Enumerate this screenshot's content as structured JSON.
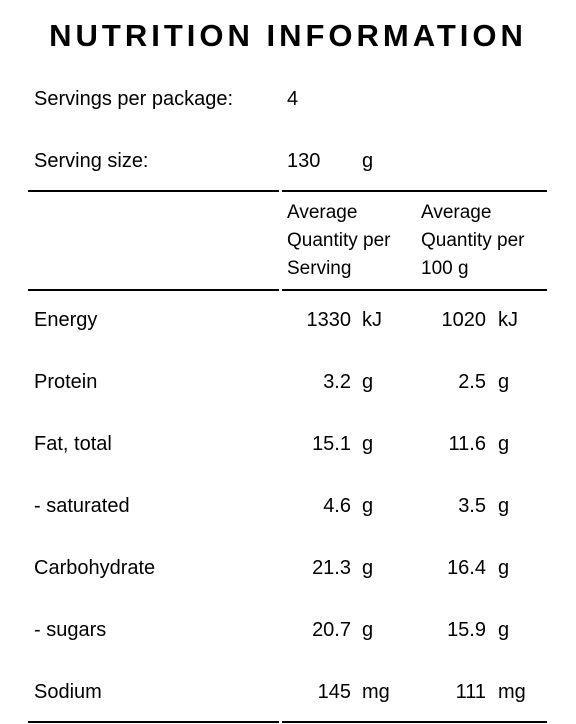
{
  "title": "NUTRITION INFORMATION",
  "servings_per_package": {
    "label": "Servings per package:",
    "value": 4
  },
  "serving_size": {
    "label": "Serving size:",
    "value": 130,
    "unit": "g"
  },
  "table": {
    "columns": [
      "Average Quantity per Serving",
      "Average Quantity per 100 g"
    ],
    "rows": [
      {
        "name": "Energy",
        "per_serving": 1330,
        "per_serving_unit": "kJ",
        "per_100g": 1020,
        "per_100g_unit": "kJ"
      },
      {
        "name": "Protein",
        "per_serving": 3.2,
        "per_serving_unit": "g",
        "per_100g": 2.5,
        "per_100g_unit": "g"
      },
      {
        "name": "Fat, total",
        "per_serving": 15.1,
        "per_serving_unit": "g",
        "per_100g": 11.6,
        "per_100g_unit": "g"
      },
      {
        "name": "- saturated",
        "per_serving": 4.6,
        "per_serving_unit": "g",
        "per_100g": 3.5,
        "per_100g_unit": "g"
      },
      {
        "name": "Carbohydrate",
        "per_serving": 21.3,
        "per_serving_unit": "g",
        "per_100g": 16.4,
        "per_100g_unit": "g"
      },
      {
        "name": "- sugars",
        "per_serving": 20.7,
        "per_serving_unit": "g",
        "per_100g": 15.9,
        "per_100g_unit": "g"
      },
      {
        "name": "Sodium",
        "per_serving": 145,
        "per_serving_unit": "mg",
        "per_100g": 111,
        "per_100g_unit": "mg"
      }
    ]
  }
}
